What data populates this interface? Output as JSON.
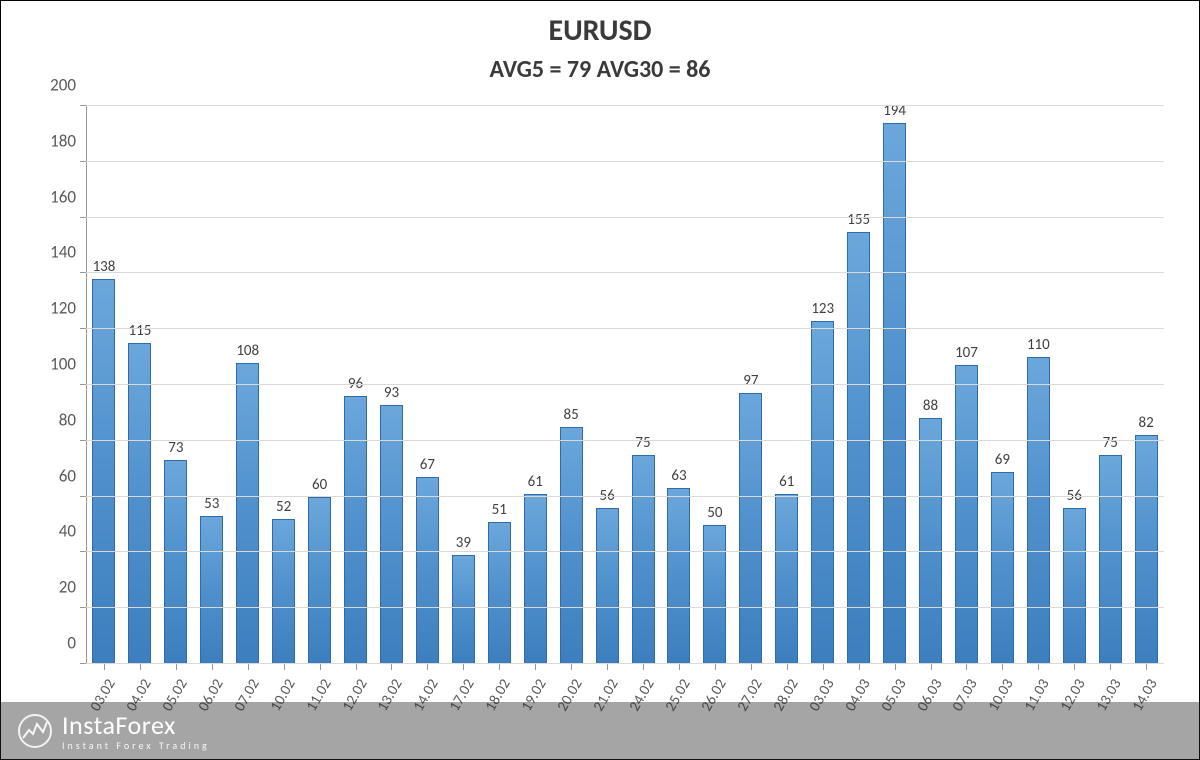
{
  "chart": {
    "type": "bar",
    "title": "EURUSD",
    "subtitle": "AVG5 = 79 AVG30 = 86",
    "title_fontsize": 30,
    "subtitle_fontsize": 24,
    "title_color": "#3a3a3a",
    "subtitle_color": "#3a3a3a",
    "categories": [
      "03.02",
      "04.02",
      "05.02",
      "06.02",
      "07.02",
      "10.02",
      "11.02",
      "12.02",
      "13.02",
      "14.02",
      "17.02",
      "18.02",
      "19.02",
      "20.02",
      "21.02",
      "24.02",
      "25.02",
      "26.02",
      "27.02",
      "28.02",
      "03.03",
      "04.03",
      "05.03",
      "06.03",
      "07.03",
      "10.03",
      "11.03",
      "12.03",
      "13.03",
      "14.03"
    ],
    "values": [
      138,
      115,
      73,
      53,
      108,
      52,
      60,
      96,
      93,
      67,
      39,
      51,
      61,
      85,
      56,
      75,
      63,
      50,
      97,
      61,
      123,
      155,
      194,
      88,
      107,
      69,
      110,
      56,
      75,
      82
    ],
    "bar_fill_top": "#6ba7db",
    "bar_fill_mid": "#4f90cc",
    "bar_fill_bottom": "#3d7fbe",
    "bar_border": "#2f6ba8",
    "bar_width": 0.64,
    "ylim": [
      0,
      200
    ],
    "ytick_step": 20,
    "yticks": [
      0,
      20,
      40,
      60,
      80,
      100,
      120,
      140,
      160,
      180,
      200
    ],
    "grid_color": "#d9d9d9",
    "axis_color": "#999999",
    "tick_label_color": "#595959",
    "tick_label_fontsize": 17,
    "value_label_fontsize": 15,
    "value_label_color": "#404040",
    "x_label_fontsize": 15,
    "x_label_rotation_deg": -60,
    "background_color": "#ffffff"
  },
  "watermark": {
    "brand": "InstaForex",
    "tagline": "Instant Forex Trading",
    "bg": "rgba(40,40,40,0.42)",
    "color": "#ffffff"
  }
}
